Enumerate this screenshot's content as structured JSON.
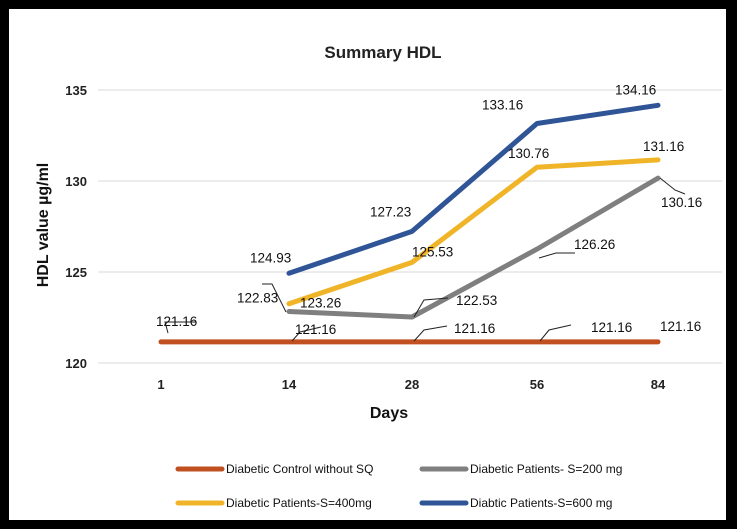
{
  "chart_data": {
    "type": "line",
    "title": "Summary HDL",
    "xlabel": "Days",
    "ylabel": "HDL value µg/ml",
    "categories": [
      "1",
      "14",
      "28",
      "56",
      "84"
    ],
    "ylim": [
      120,
      135
    ],
    "yticks": [
      "120",
      "125",
      "130",
      "135"
    ],
    "grid": "horizontal",
    "legend_position": "bottom",
    "series": [
      {
        "name": "Diabetic Control without SQ",
        "color": "#c0501f",
        "values": [
          121.16,
          121.16,
          121.16,
          121.16,
          121.16
        ],
        "labels": [
          "121.16",
          "121.16",
          "121.16",
          "121.16",
          "121.16"
        ]
      },
      {
        "name": "Diabetic Patients- S=200 mg",
        "color": "#7f7f7f",
        "values": [
          null,
          122.83,
          122.53,
          126.26,
          130.16
        ],
        "labels": [
          null,
          "122.83",
          "122.53",
          "126.26",
          "130.16"
        ]
      },
      {
        "name": "Diabetic Patients-S=400mg",
        "color": "#f0b428",
        "values": [
          null,
          123.26,
          125.53,
          130.76,
          131.16
        ],
        "labels": [
          null,
          "123.26",
          "125.53",
          "130.76",
          "131.16"
        ]
      },
      {
        "name": "Diabtic Patients-S=600 mg",
        "color": "#2f5597",
        "values": [
          null,
          124.93,
          127.23,
          133.16,
          134.16
        ],
        "labels": [
          null,
          "124.93",
          "127.23",
          "133.16",
          "134.16"
        ]
      }
    ]
  }
}
